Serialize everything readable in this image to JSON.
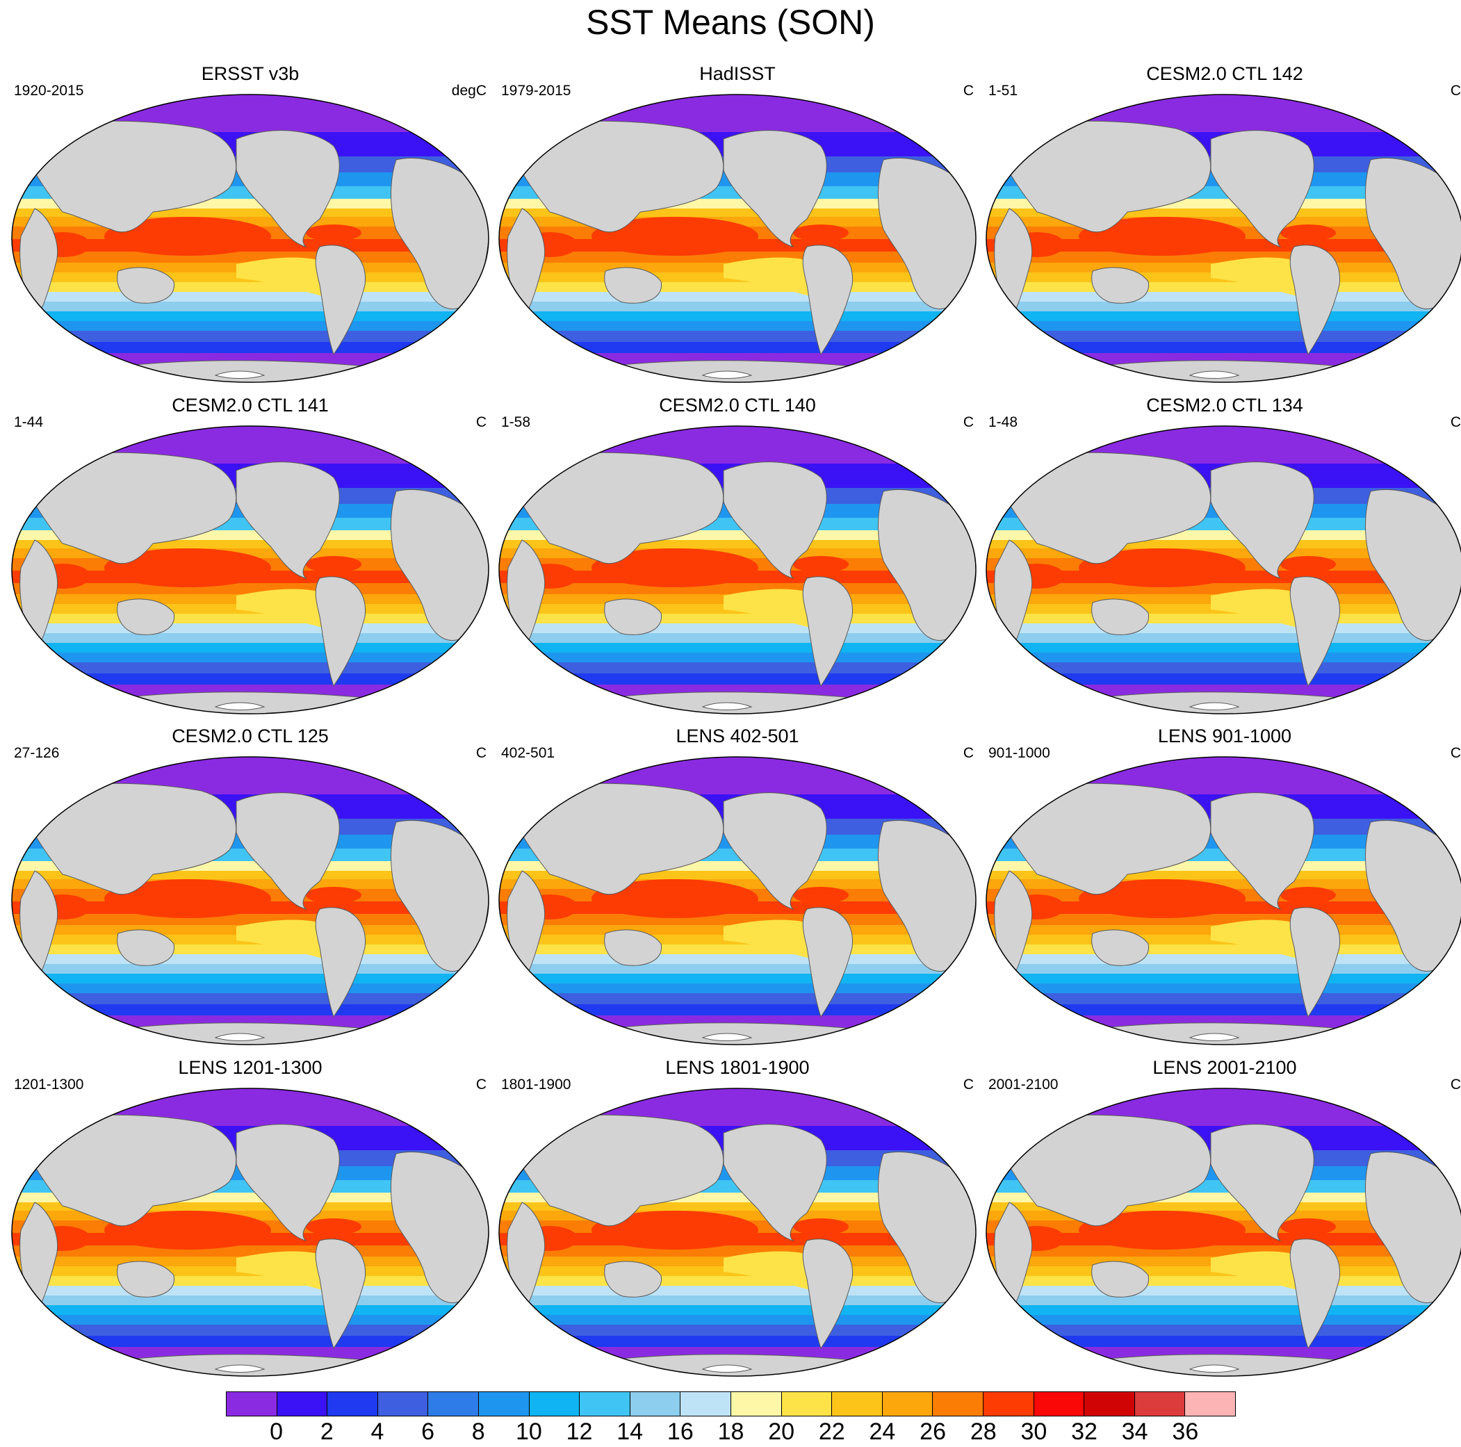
{
  "title": "SST Means (SON)",
  "panels": [
    {
      "title": "ERSST v3b",
      "period": "1920-2015",
      "units": "degC"
    },
    {
      "title": "HadISST",
      "period": "1979-2015",
      "units": "C"
    },
    {
      "title": "CESM2.0 CTL 142",
      "period": "1-51",
      "units": "C"
    },
    {
      "title": "CESM2.0 CTL 141",
      "period": "1-44",
      "units": "C"
    },
    {
      "title": "CESM2.0 CTL 140",
      "period": "1-58",
      "units": "C"
    },
    {
      "title": "CESM2.0 CTL 134",
      "period": "1-48",
      "units": "C"
    },
    {
      "title": "CESM2.0 CTL 125",
      "period": "27-126",
      "units": "C"
    },
    {
      "title": "LENS 402-501",
      "period": "402-501",
      "units": "C"
    },
    {
      "title": "LENS 901-1000",
      "period": "901-1000",
      "units": "C"
    },
    {
      "title": "LENS 1201-1300",
      "period": "1201-1300",
      "units": "C"
    },
    {
      "title": "LENS 1801-1900",
      "period": "1801-1900",
      "units": "C"
    },
    {
      "title": "LENS 2001-2100",
      "period": "2001-2100",
      "units": "C"
    }
  ],
  "colorbar": {
    "labels": [
      "0",
      "2",
      "4",
      "6",
      "8",
      "10",
      "12",
      "14",
      "16",
      "18",
      "20",
      "22",
      "24",
      "26",
      "28",
      "30",
      "32",
      "34",
      "36"
    ],
    "colors": [
      "#8a2be2",
      "#3b12f5",
      "#1f3af0",
      "#3e5fe0",
      "#2e7ce8",
      "#1e96f0",
      "#10b4f2",
      "#40c4f4",
      "#8dcdee",
      "#bfe3f6",
      "#fff7a8",
      "#fde347",
      "#fcc419",
      "#fca70c",
      "#fc7d05",
      "#fc3c02",
      "#fa0707",
      "#d00404",
      "#dc3c3c",
      "#fcb4b4"
    ]
  },
  "colors": {
    "land": "#d3d3d3",
    "ice": "#ffffff",
    "outline": "#5a5a5a"
  }
}
